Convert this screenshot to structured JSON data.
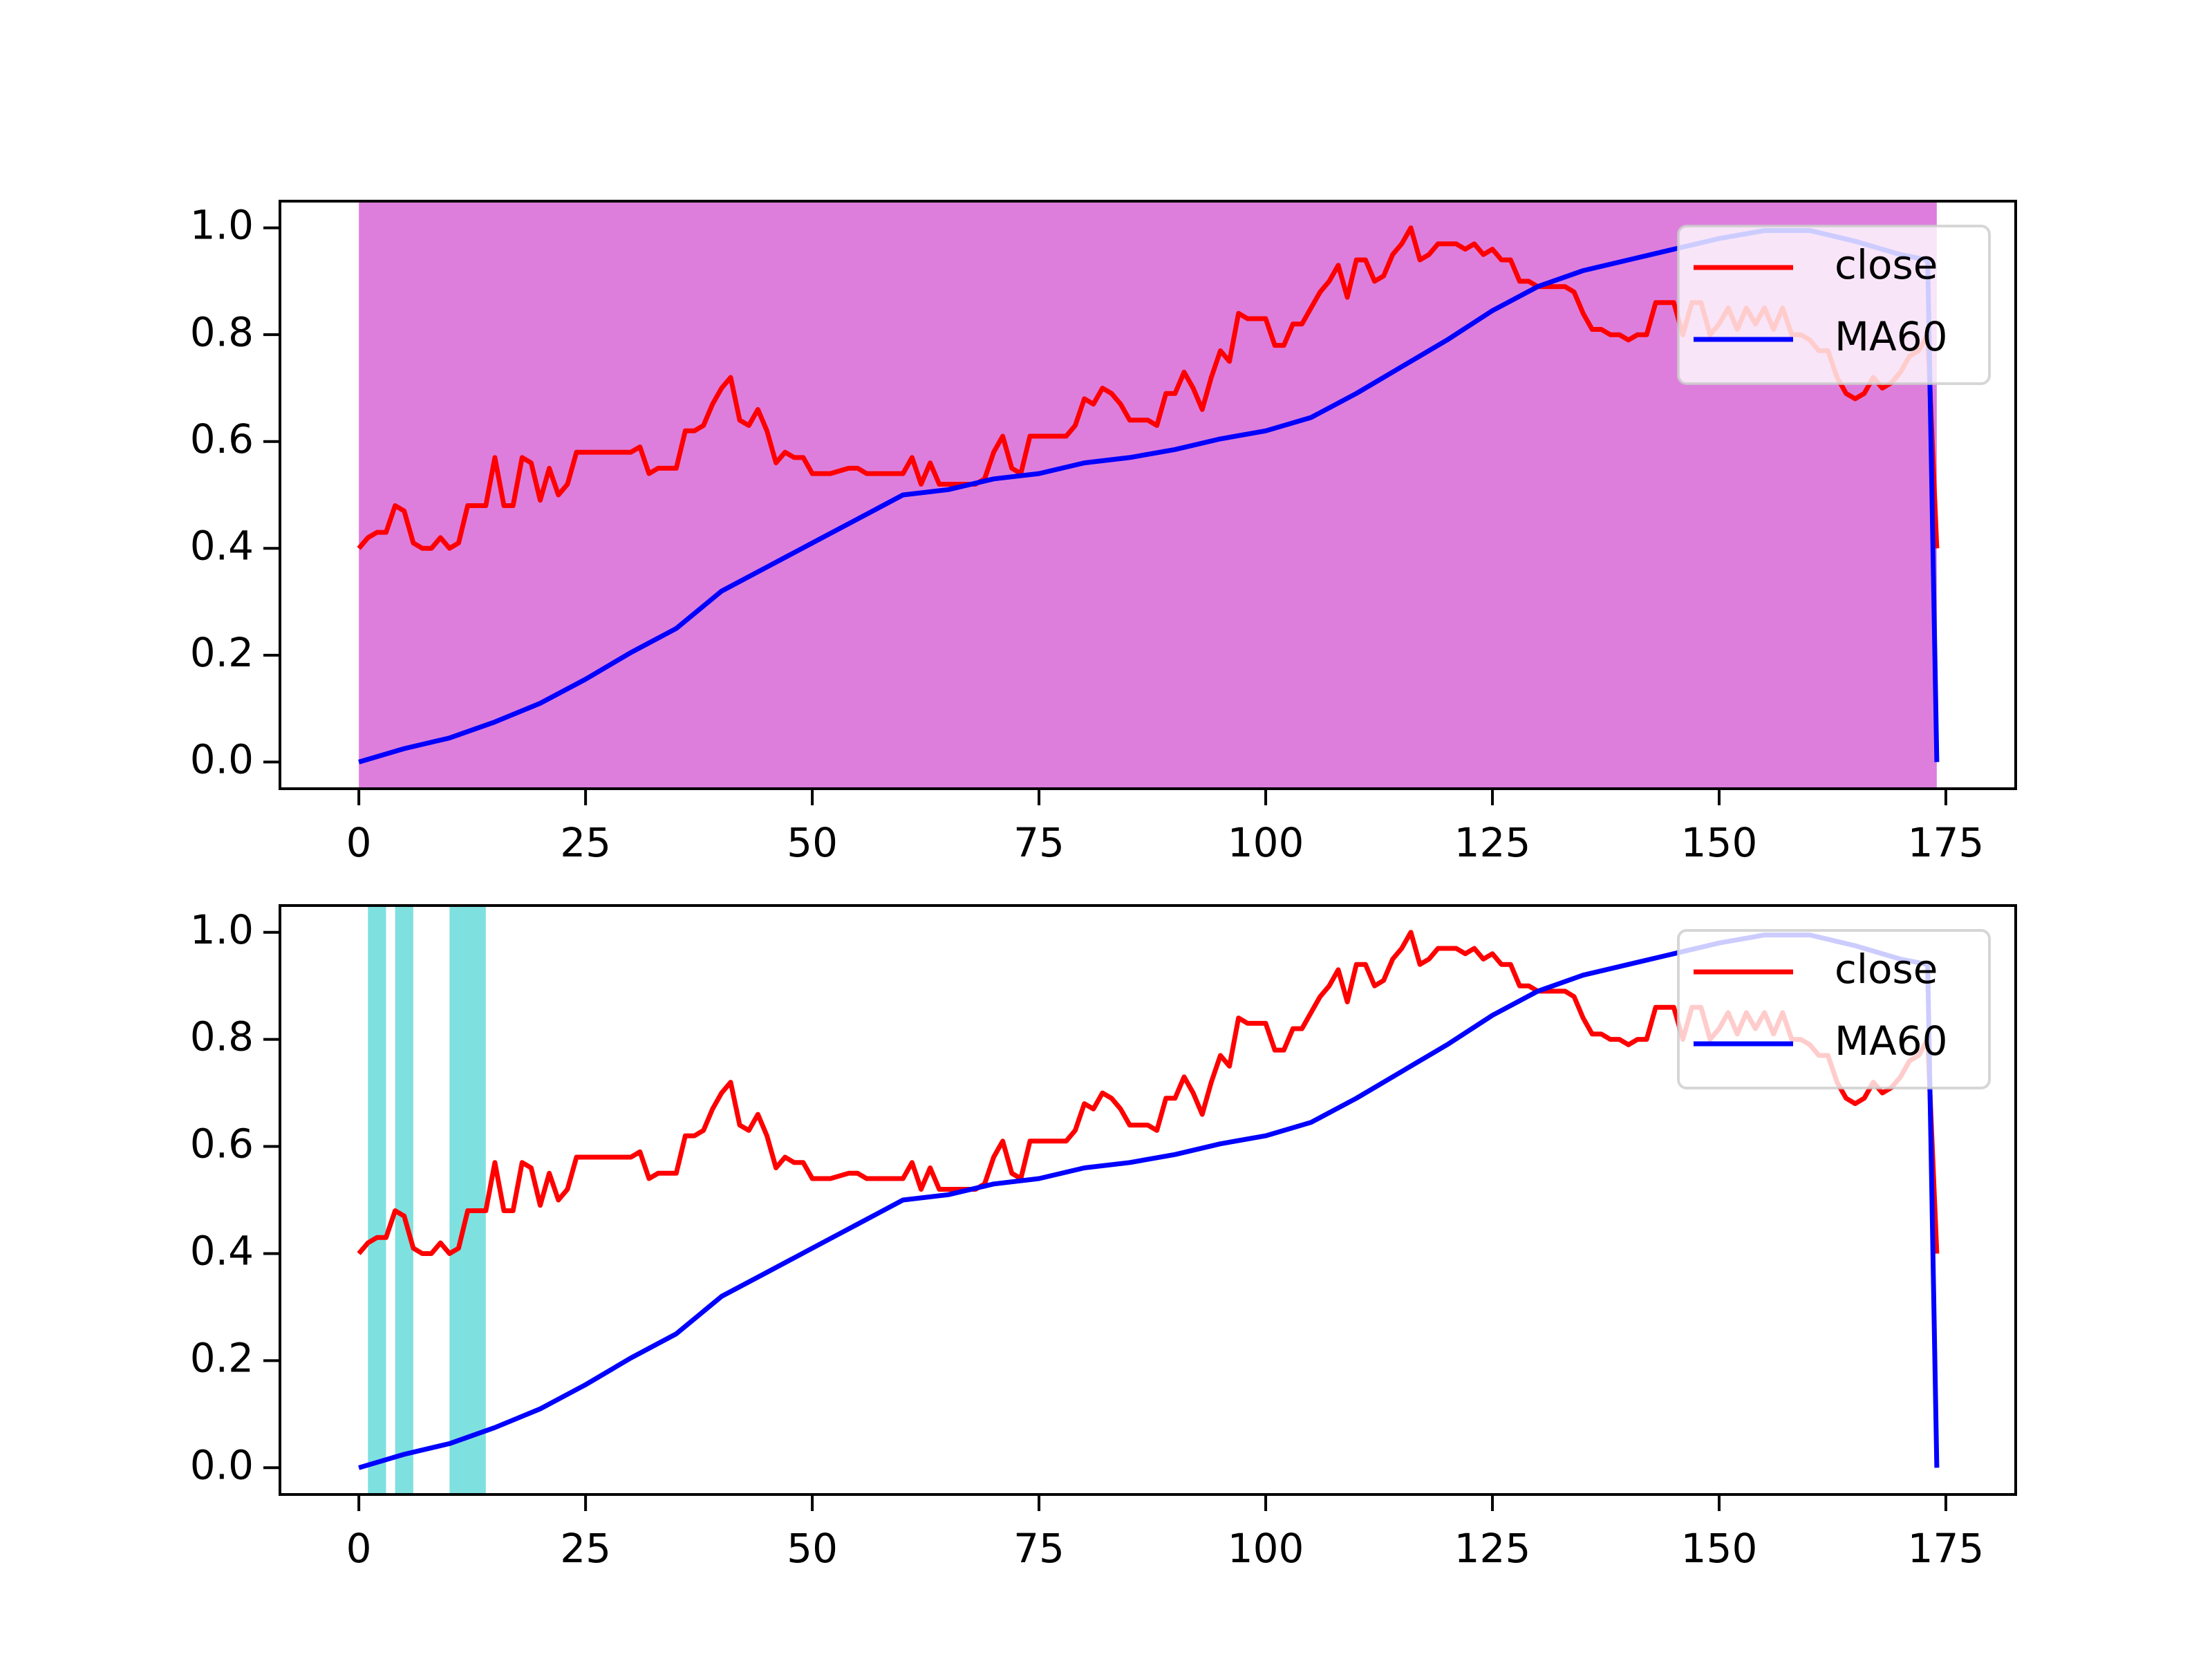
{
  "chart_data": [
    {
      "type": "line",
      "xlim": [
        -8.7,
        182.7
      ],
      "ylim": [
        -0.05,
        1.05
      ],
      "xticks": [
        0,
        25,
        50,
        75,
        100,
        125,
        150,
        175
      ],
      "yticks": [
        {
          "value": 0,
          "label": "0.0"
        },
        0.2,
        0.4,
        0.6,
        0.8,
        {
          "value": 1,
          "label": "1.0"
        }
      ],
      "legend": "upper right",
      "spans": [
        {
          "x0": 0,
          "x1": 174,
          "color": "#dd7edd"
        }
      ],
      "series": [
        {
          "name": "close",
          "color": "#ff0000",
          "x": [
            0,
            1,
            2,
            3,
            4,
            5,
            6,
            7,
            8,
            9,
            10,
            11,
            12,
            13,
            14,
            15,
            16,
            17,
            18,
            19,
            20,
            21,
            22,
            23,
            24,
            25,
            26,
            28,
            30,
            31,
            32,
            33,
            34,
            35,
            36,
            37,
            38,
            39,
            40,
            41,
            42,
            43,
            44,
            45,
            46,
            47,
            48,
            49,
            50,
            52,
            54,
            55,
            56,
            58,
            60,
            61,
            62,
            63,
            64,
            66,
            68,
            69,
            70,
            71,
            72,
            73,
            74,
            76,
            78,
            79,
            80,
            81,
            82,
            83,
            84,
            85,
            87,
            88,
            89,
            90,
            91,
            92,
            93,
            94,
            95,
            96,
            97,
            98,
            100,
            101,
            102,
            103,
            104,
            105,
            106,
            107,
            108,
            109,
            110,
            111,
            112,
            113,
            114,
            115,
            116,
            117,
            118,
            119,
            121,
            122,
            123,
            124,
            125,
            126,
            127,
            128,
            129,
            130,
            132,
            133,
            134,
            135,
            136,
            137,
            138,
            139,
            140,
            141,
            142,
            143,
            145,
            146,
            147,
            148,
            149,
            150,
            151,
            152,
            153,
            154,
            155,
            156,
            157,
            158,
            159,
            160,
            161,
            162,
            163,
            164,
            165,
            166,
            167,
            168,
            169,
            170,
            171,
            172,
            173,
            174
          ],
          "values": [
            0.4,
            0.42,
            0.43,
            0.43,
            0.48,
            0.47,
            0.41,
            0.4,
            0.4,
            0.42,
            0.4,
            0.41,
            0.48,
            0.48,
            0.48,
            0.57,
            0.48,
            0.48,
            0.57,
            0.56,
            0.49,
            0.55,
            0.5,
            0.52,
            0.58,
            0.58,
            0.58,
            0.58,
            0.58,
            0.59,
            0.54,
            0.55,
            0.55,
            0.55,
            0.62,
            0.62,
            0.63,
            0.67,
            0.7,
            0.72,
            0.64,
            0.63,
            0.66,
            0.62,
            0.56,
            0.58,
            0.57,
            0.57,
            0.54,
            0.54,
            0.55,
            0.55,
            0.54,
            0.54,
            0.54,
            0.57,
            0.52,
            0.56,
            0.52,
            0.52,
            0.52,
            0.53,
            0.58,
            0.61,
            0.55,
            0.54,
            0.61,
            0.61,
            0.61,
            0.63,
            0.68,
            0.67,
            0.7,
            0.69,
            0.67,
            0.64,
            0.64,
            0.63,
            0.69,
            0.69,
            0.73,
            0.7,
            0.66,
            0.72,
            0.77,
            0.75,
            0.84,
            0.83,
            0.83,
            0.78,
            0.78,
            0.82,
            0.82,
            0.85,
            0.88,
            0.9,
            0.93,
            0.87,
            0.94,
            0.94,
            0.9,
            0.91,
            0.95,
            0.97,
            1.0,
            0.94,
            0.95,
            0.97,
            0.97,
            0.96,
            0.97,
            0.95,
            0.96,
            0.94,
            0.94,
            0.9,
            0.9,
            0.89,
            0.89,
            0.89,
            0.88,
            0.84,
            0.81,
            0.81,
            0.8,
            0.8,
            0.79,
            0.8,
            0.8,
            0.86,
            0.86,
            0.8,
            0.86,
            0.86,
            0.8,
            0.82,
            0.85,
            0.81,
            0.85,
            0.82,
            0.85,
            0.81,
            0.85,
            0.8,
            0.8,
            0.79,
            0.77,
            0.77,
            0.72,
            0.69,
            0.68,
            0.69,
            0.72,
            0.7,
            0.71,
            0.73,
            0.76,
            0.77,
            0.8,
            0.4
          ]
        },
        {
          "name": "MA60",
          "color": "#0000ff",
          "x": [
            0,
            5,
            10,
            15,
            20,
            25,
            30,
            35,
            40,
            45,
            50,
            55,
            60,
            65,
            70,
            75,
            80,
            85,
            90,
            95,
            100,
            105,
            110,
            115,
            120,
            125,
            130,
            135,
            140,
            145,
            150,
            155,
            160,
            165,
            170,
            173,
            174
          ],
          "values": [
            0.0,
            0.025,
            0.045,
            0.075,
            0.11,
            0.155,
            0.205,
            0.25,
            0.32,
            0.365,
            0.41,
            0.455,
            0.5,
            0.51,
            0.53,
            0.54,
            0.56,
            0.57,
            0.585,
            0.605,
            0.62,
            0.645,
            0.69,
            0.74,
            0.79,
            0.845,
            0.89,
            0.92,
            0.94,
            0.96,
            0.98,
            0.995,
            0.995,
            0.975,
            0.95,
            0.94,
            0.0
          ]
        }
      ]
    },
    {
      "type": "line",
      "xlim": [
        -8.7,
        182.7
      ],
      "ylim": [
        -0.05,
        1.05
      ],
      "xticks": [
        0,
        25,
        50,
        75,
        100,
        125,
        150,
        175
      ],
      "yticks": [
        {
          "value": 0,
          "label": "0.0"
        },
        0.2,
        0.4,
        0.6,
        0.8,
        {
          "value": 1,
          "label": "1.0"
        }
      ],
      "legend": "upper right",
      "spans": [
        {
          "x0": 1,
          "x1": 3,
          "color": "#7fe0e0"
        },
        {
          "x0": 4,
          "x1": 6,
          "color": "#7fe0e0"
        },
        {
          "x0": 10,
          "x1": 14,
          "color": "#7fe0e0"
        }
      ],
      "series": [
        {
          "name": "close",
          "color": "#ff0000",
          "x": [
            0,
            1,
            2,
            3,
            4,
            5,
            6,
            7,
            8,
            9,
            10,
            11,
            12,
            13,
            14,
            15,
            16,
            17,
            18,
            19,
            20,
            21,
            22,
            23,
            24,
            25,
            26,
            28,
            30,
            31,
            32,
            33,
            34,
            35,
            36,
            37,
            38,
            39,
            40,
            41,
            42,
            43,
            44,
            45,
            46,
            47,
            48,
            49,
            50,
            52,
            54,
            55,
            56,
            58,
            60,
            61,
            62,
            63,
            64,
            66,
            68,
            69,
            70,
            71,
            72,
            73,
            74,
            76,
            78,
            79,
            80,
            81,
            82,
            83,
            84,
            85,
            87,
            88,
            89,
            90,
            91,
            92,
            93,
            94,
            95,
            96,
            97,
            98,
            100,
            101,
            102,
            103,
            104,
            105,
            106,
            107,
            108,
            109,
            110,
            111,
            112,
            113,
            114,
            115,
            116,
            117,
            118,
            119,
            121,
            122,
            123,
            124,
            125,
            126,
            127,
            128,
            129,
            130,
            132,
            133,
            134,
            135,
            136,
            137,
            138,
            139,
            140,
            141,
            142,
            143,
            145,
            146,
            147,
            148,
            149,
            150,
            151,
            152,
            153,
            154,
            155,
            156,
            157,
            158,
            159,
            160,
            161,
            162,
            163,
            164,
            165,
            166,
            167,
            168,
            169,
            170,
            171,
            172,
            173,
            174
          ],
          "values": [
            0.4,
            0.42,
            0.43,
            0.43,
            0.48,
            0.47,
            0.41,
            0.4,
            0.4,
            0.42,
            0.4,
            0.41,
            0.48,
            0.48,
            0.48,
            0.57,
            0.48,
            0.48,
            0.57,
            0.56,
            0.49,
            0.55,
            0.5,
            0.52,
            0.58,
            0.58,
            0.58,
            0.58,
            0.58,
            0.59,
            0.54,
            0.55,
            0.55,
            0.55,
            0.62,
            0.62,
            0.63,
            0.67,
            0.7,
            0.72,
            0.64,
            0.63,
            0.66,
            0.62,
            0.56,
            0.58,
            0.57,
            0.57,
            0.54,
            0.54,
            0.55,
            0.55,
            0.54,
            0.54,
            0.54,
            0.57,
            0.52,
            0.56,
            0.52,
            0.52,
            0.52,
            0.53,
            0.58,
            0.61,
            0.55,
            0.54,
            0.61,
            0.61,
            0.61,
            0.63,
            0.68,
            0.67,
            0.7,
            0.69,
            0.67,
            0.64,
            0.64,
            0.63,
            0.69,
            0.69,
            0.73,
            0.7,
            0.66,
            0.72,
            0.77,
            0.75,
            0.84,
            0.83,
            0.83,
            0.78,
            0.78,
            0.82,
            0.82,
            0.85,
            0.88,
            0.9,
            0.93,
            0.87,
            0.94,
            0.94,
            0.9,
            0.91,
            0.95,
            0.97,
            1.0,
            0.94,
            0.95,
            0.97,
            0.97,
            0.96,
            0.97,
            0.95,
            0.96,
            0.94,
            0.94,
            0.9,
            0.9,
            0.89,
            0.89,
            0.89,
            0.88,
            0.84,
            0.81,
            0.81,
            0.8,
            0.8,
            0.79,
            0.8,
            0.8,
            0.86,
            0.86,
            0.8,
            0.86,
            0.86,
            0.8,
            0.82,
            0.85,
            0.81,
            0.85,
            0.82,
            0.85,
            0.81,
            0.85,
            0.8,
            0.8,
            0.79,
            0.77,
            0.77,
            0.72,
            0.69,
            0.68,
            0.69,
            0.72,
            0.7,
            0.71,
            0.73,
            0.76,
            0.77,
            0.8,
            0.4
          ]
        },
        {
          "name": "MA60",
          "color": "#0000ff",
          "x": [
            0,
            5,
            10,
            15,
            20,
            25,
            30,
            35,
            40,
            45,
            50,
            55,
            60,
            65,
            70,
            75,
            80,
            85,
            90,
            95,
            100,
            105,
            110,
            115,
            120,
            125,
            130,
            135,
            140,
            145,
            150,
            155,
            160,
            165,
            170,
            173,
            174
          ],
          "values": [
            0.0,
            0.025,
            0.045,
            0.075,
            0.11,
            0.155,
            0.205,
            0.25,
            0.32,
            0.365,
            0.41,
            0.455,
            0.5,
            0.51,
            0.53,
            0.54,
            0.56,
            0.57,
            0.585,
            0.605,
            0.62,
            0.645,
            0.69,
            0.74,
            0.79,
            0.845,
            0.89,
            0.92,
            0.94,
            0.96,
            0.98,
            0.995,
            0.995,
            0.975,
            0.95,
            0.94,
            0.0
          ]
        }
      ]
    }
  ]
}
